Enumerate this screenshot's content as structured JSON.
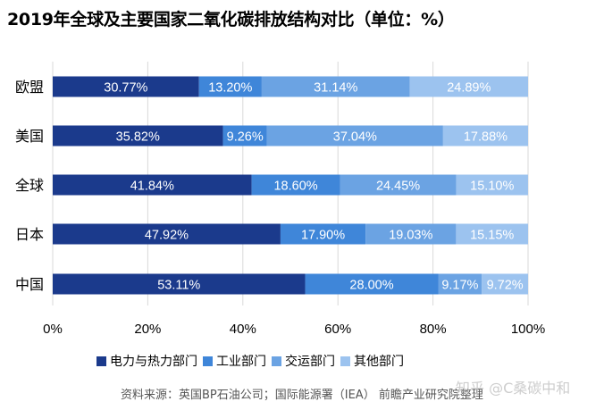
{
  "title": "2019年全球及主要国家二氧化碳排放结构对比（单位：%）",
  "source": "资料来源：英国BP石油公司；国际能源署（IEA）  前瞻产业研究院整理",
  "watermark": "知乎 @C桑碳中和",
  "colors": [
    "#1b3a8c",
    "#3f86d9",
    "#6ba3e3",
    "#9cc3ef"
  ],
  "chart_data": {
    "type": "bar",
    "orientation": "horizontal",
    "stacked": "percent",
    "categories": [
      "欧盟",
      "美国",
      "全球",
      "日本",
      "中国"
    ],
    "series": [
      {
        "name": "电力与热力部门",
        "values": [
          30.77,
          35.82,
          41.84,
          47.92,
          53.11
        ],
        "labels": [
          "30.77%",
          "35.82%",
          "41.84%",
          "47.92%",
          "53.11%"
        ]
      },
      {
        "name": "工业部门",
        "values": [
          13.2,
          9.26,
          18.6,
          17.9,
          28.0
        ],
        "labels": [
          "13.20%",
          "9.26%",
          "18.60%",
          "17.90%",
          "28.00%"
        ]
      },
      {
        "name": "交运部门",
        "values": [
          31.14,
          37.04,
          24.45,
          19.03,
          9.17
        ],
        "labels": [
          "31.14%",
          "37.04%",
          "24.45%",
          "19.03%",
          "9.17%"
        ]
      },
      {
        "name": "其他部门",
        "values": [
          24.89,
          17.88,
          15.1,
          15.15,
          9.72
        ],
        "labels": [
          "24.89%",
          "17.88%",
          "15.10%",
          "15.15%",
          "9.72%"
        ]
      }
    ],
    "xlim": [
      0,
      100
    ],
    "xticks": [
      "0%",
      "20%",
      "40%",
      "60%",
      "80%",
      "100%"
    ],
    "grid": true,
    "legend_position": "bottom"
  }
}
